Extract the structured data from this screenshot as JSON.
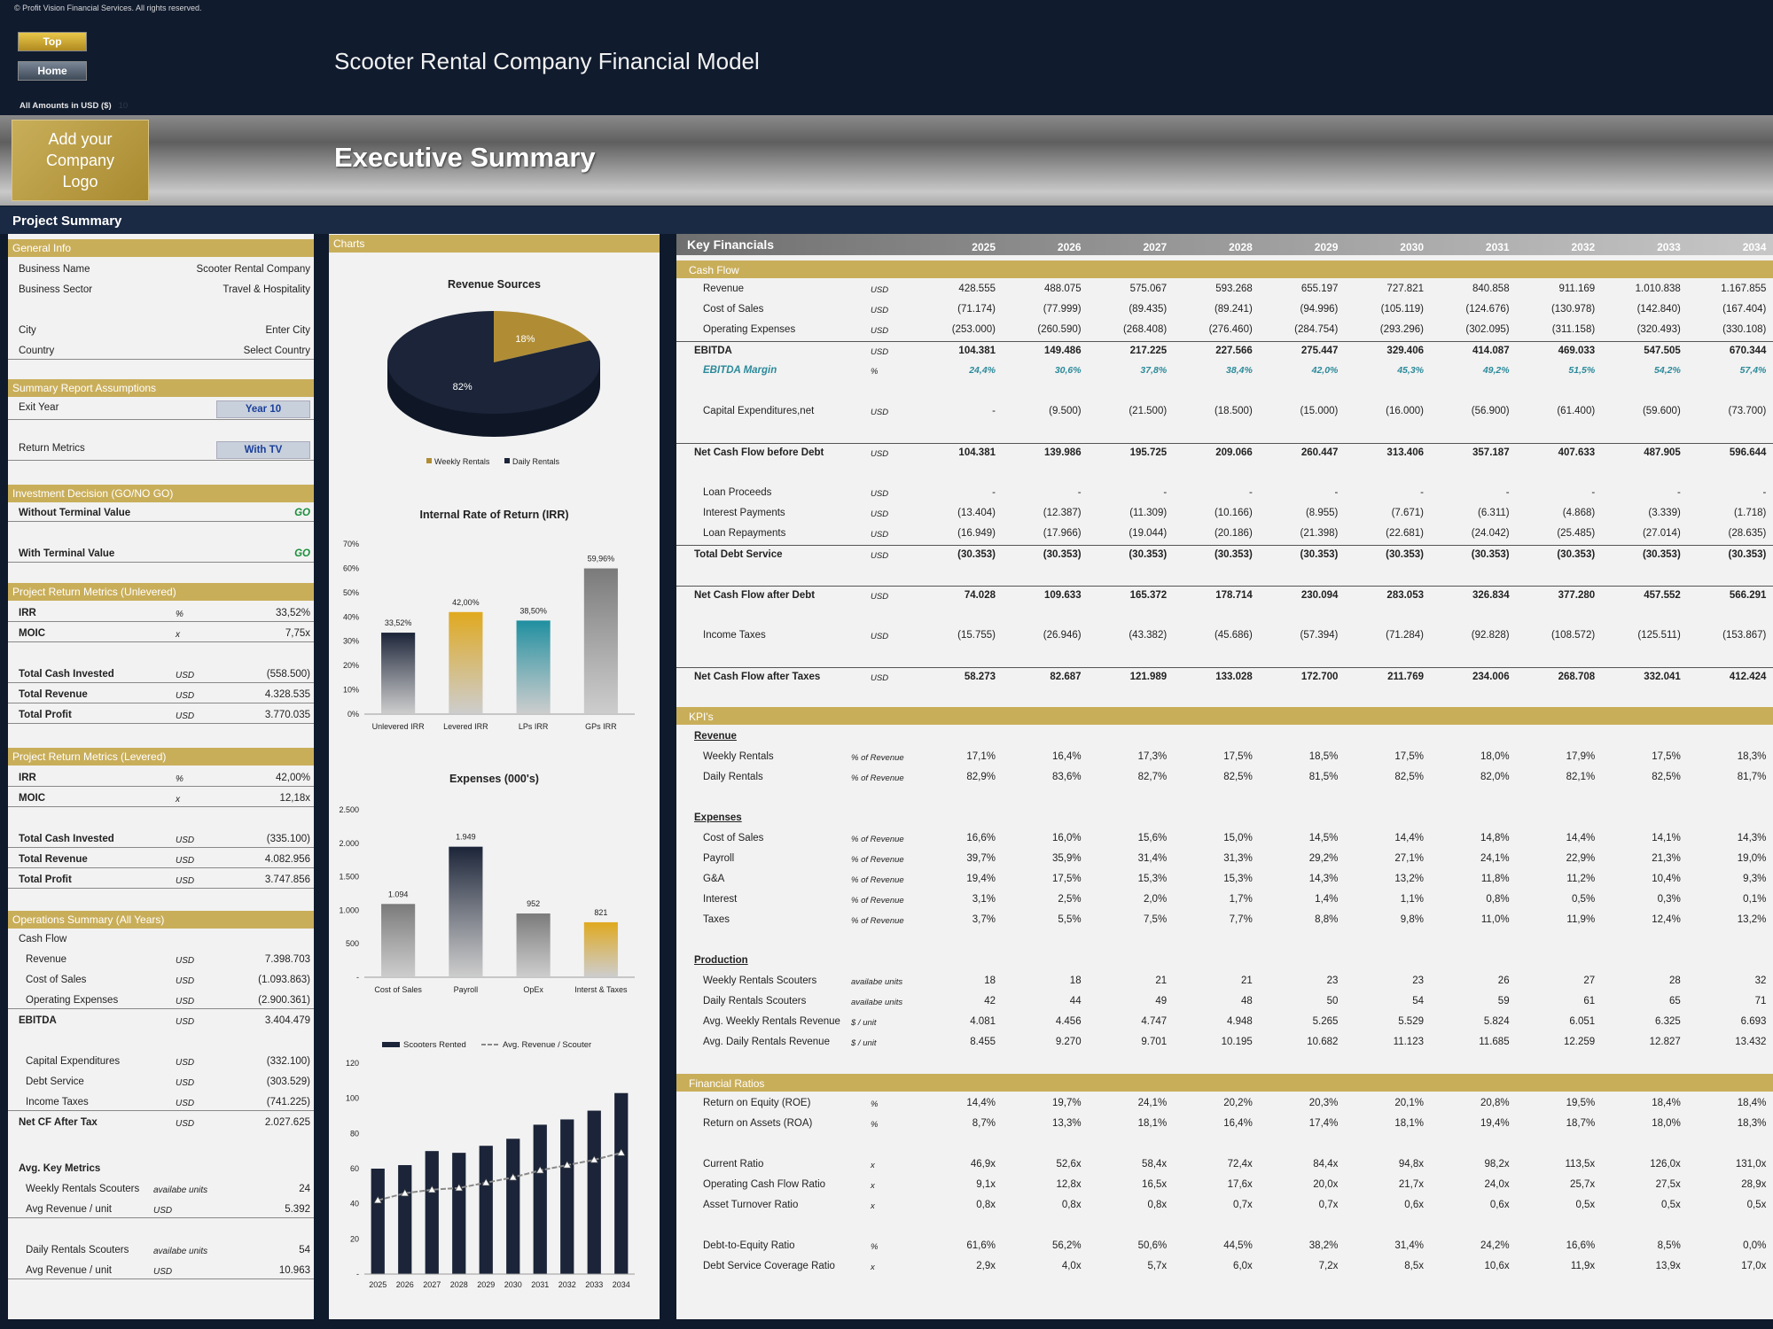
{
  "header": {
    "copyright": "© Profit Vision Financial Services. All rights reserved.",
    "top_label": "Top",
    "home_label": "Home",
    "title": "Scooter Rental Company Financial Model",
    "amounts": "All Amounts in  USD ($)",
    "amounts_small": "10"
  },
  "banner": {
    "logo": "Add your Company Logo",
    "title": "Executive Summary"
  },
  "project_summary": "Project Summary",
  "general": {
    "heading": "General Info",
    "rows": [
      {
        "label": "Business Name",
        "value": "Scooter Rental Company"
      },
      {
        "label": "Business Sector",
        "value": "Travel & Hospitality"
      },
      {
        "label": "City",
        "value": "Enter City"
      },
      {
        "label": "Country",
        "value": "Select Country"
      }
    ]
  },
  "assumptions": {
    "heading": "Summary  Report Assumptions",
    "exit_label": "Exit Year",
    "exit_value": "Year 10",
    "return_label": "Return Metrics",
    "return_value": "With TV"
  },
  "decision": {
    "heading": "Investment Decision (GO/NO GO)",
    "without_label": "Without Terminal Value",
    "without_value": "GO",
    "with_label": "With Terminal Value",
    "with_value": "GO"
  },
  "unlevered": {
    "heading": "Project Return Metrics (Unlevered)",
    "irr_label": "IRR",
    "irr_unit": "%",
    "irr": "33,52%",
    "moic_label": "MOIC",
    "moic_unit": "x",
    "moic": "7,75x",
    "tci_label": "Total Cash Invested",
    "tci_unit": "USD",
    "tci": "(558.500)",
    "rev_label": "Total Revenue",
    "rev_unit": "USD",
    "rev": "4.328.535",
    "profit_label": "Total Profit",
    "profit_unit": "USD",
    "profit": "3.770.035"
  },
  "levered": {
    "heading": "Project Return Metrics (Levered)",
    "irr_label": "IRR",
    "irr_unit": "%",
    "irr": "42,00%",
    "moic_label": "MOIC",
    "moic_unit": "x",
    "moic": "12,18x",
    "tci_label": "Total Cash Invested",
    "tci_unit": "USD",
    "tci": "(335.100)",
    "rev_label": "Total Revenue",
    "rev_unit": "USD",
    "rev": "4.082.956",
    "profit_label": "Total Profit",
    "profit_unit": "USD",
    "profit": "3.747.856"
  },
  "ops": {
    "heading": "Operations Summary (All Years)",
    "cf_label": "Cash Flow",
    "rows": [
      {
        "label": "Revenue",
        "unit": "USD",
        "value": "7.398.703"
      },
      {
        "label": "Cost of Sales",
        "unit": "USD",
        "value": "(1.093.863)"
      },
      {
        "label": "Operating Expenses",
        "unit": "USD",
        "value": "(2.900.361)"
      }
    ],
    "ebitda_label": "EBITDA",
    "ebitda_unit": "USD",
    "ebitda": "3.404.479",
    "rows2": [
      {
        "label": "Capital Expenditures",
        "unit": "USD",
        "value": "(332.100)"
      },
      {
        "label": "Debt Service",
        "unit": "USD",
        "value": "(303.529)"
      },
      {
        "label": "Income Taxes",
        "unit": "USD",
        "value": "(741.225)"
      }
    ],
    "netcf_label": "Net CF After Tax",
    "netcf_unit": "USD",
    "netcf": "2.027.625",
    "akm_label": "Avg. Key Metrics",
    "rows3": [
      {
        "label": "Weekly Rentals Scouters",
        "unit": "availabe units",
        "value": "24"
      },
      {
        "label": "Avg Revenue / unit",
        "unit": "USD",
        "value": "5.392"
      },
      {
        "label": "Daily Rentals Scouters",
        "unit": "availabe units",
        "value": "54"
      },
      {
        "label": "Avg Revenue / unit",
        "unit": "USD",
        "value": "10.963"
      }
    ]
  },
  "charts_heading": "Charts",
  "chart_data": [
    {
      "type": "pie",
      "title": "Revenue Sources",
      "categories": [
        "Weekly Rentals",
        "Daily Rentals"
      ],
      "values": [
        18,
        82
      ],
      "labels": [
        "18%",
        "82%"
      ],
      "colors": [
        "#b08d35",
        "#1b2438"
      ],
      "legend": "bottom"
    },
    {
      "type": "bar",
      "title": "Internal Rate of Return (IRR)",
      "categories": [
        "Unlevered IRR",
        "Levered IRR",
        "LPs IRR",
        "GPs IRR"
      ],
      "values": [
        33.52,
        42.0,
        38.5,
        59.96
      ],
      "labels": [
        "33,52%",
        "42,00%",
        "38,50%",
        "59,96%"
      ],
      "ylim": [
        0,
        70
      ],
      "yticks": [
        "0%",
        "10%",
        "20%",
        "30%",
        "40%",
        "50%",
        "60%",
        "70%"
      ],
      "colors": [
        "#1b2438",
        "#e0a91e",
        "#1f8fa0",
        "#7a7a7a"
      ]
    },
    {
      "type": "bar",
      "title": "Expenses (000's)",
      "categories": [
        "Cost of Sales",
        "Payroll",
        "OpEx",
        "Interst & Taxes"
      ],
      "values": [
        1094,
        1949,
        952,
        821
      ],
      "labels": [
        "1.094",
        "1.949",
        "952",
        "821"
      ],
      "ylim": [
        0,
        2500
      ],
      "yticks": [
        "-",
        "500",
        "1.000",
        "1.500",
        "2.000",
        "2.500"
      ],
      "colors": [
        "#7a7a7a",
        "#1b2438",
        "#7a7a7a",
        "#e0a91e"
      ]
    },
    {
      "type": "bar",
      "title": "",
      "categories": [
        "2025",
        "2026",
        "2027",
        "2028",
        "2029",
        "2030",
        "2031",
        "2032",
        "2033",
        "2034"
      ],
      "series": [
        {
          "name": "Scooters Rented",
          "values": [
            60,
            62,
            70,
            69,
            73,
            77,
            85,
            88,
            93,
            103
          ]
        },
        {
          "name": "Avg. Revenue / Scouter",
          "values": [
            42,
            46,
            48,
            49,
            52,
            55,
            59,
            62,
            65,
            69
          ]
        }
      ],
      "ylim": [
        0,
        120
      ],
      "yticks": [
        "-",
        "20",
        "40",
        "60",
        "80",
        "100",
        "120"
      ],
      "legend": "top"
    }
  ],
  "kf": {
    "title": "Key Financials",
    "years": [
      "2025",
      "2026",
      "2027",
      "2028",
      "2029",
      "2030",
      "2031",
      "2032",
      "2033",
      "2034"
    ],
    "cash_flow": "Cash Flow",
    "cf_rows": [
      {
        "label": "Revenue",
        "unit": "USD",
        "style": "",
        "vals": [
          "428.555",
          "488.075",
          "575.067",
          "593.268",
          "655.197",
          "727.821",
          "840.858",
          "911.169",
          "1.010.838",
          "1.167.855"
        ]
      },
      {
        "label": "Cost of Sales",
        "unit": "USD",
        "style": "",
        "vals": [
          "(71.174)",
          "(77.999)",
          "(89.435)",
          "(89.241)",
          "(94.996)",
          "(105.119)",
          "(124.676)",
          "(130.978)",
          "(142.840)",
          "(167.404)"
        ]
      },
      {
        "label": "Operating Expenses",
        "unit": "USD",
        "style": "",
        "vals": [
          "(253.000)",
          "(260.590)",
          "(268.408)",
          "(276.460)",
          "(284.754)",
          "(293.296)",
          "(302.095)",
          "(311.158)",
          "(320.493)",
          "(330.108)"
        ]
      },
      {
        "label": "EBITDA",
        "unit": "USD",
        "style": "bold",
        "vals": [
          "104.381",
          "149.486",
          "217.225",
          "227.566",
          "275.447",
          "329.406",
          "414.087",
          "469.033",
          "547.505",
          "670.344"
        ]
      },
      {
        "label": "EBITDA Margin",
        "unit": "%",
        "style": "margin",
        "vals": [
          "24,4%",
          "30,6%",
          "37,8%",
          "38,4%",
          "42,0%",
          "45,3%",
          "49,2%",
          "51,5%",
          "54,2%",
          "57,4%"
        ]
      },
      {
        "label": "Capital Expenditures,net",
        "unit": "USD",
        "style": "",
        "vals": [
          "-",
          "(9.500)",
          "(21.500)",
          "(18.500)",
          "(15.000)",
          "(16.000)",
          "(56.900)",
          "(61.400)",
          "(59.600)",
          "(73.700)"
        ]
      },
      {
        "label": "Net Cash Flow before Debt",
        "unit": "USD",
        "style": "bold",
        "vals": [
          "104.381",
          "139.986",
          "195.725",
          "209.066",
          "260.447",
          "313.406",
          "357.187",
          "407.633",
          "487.905",
          "596.644"
        ]
      },
      {
        "label": "Loan Proceeds",
        "unit": "USD",
        "style": "",
        "vals": [
          "-",
          "-",
          "-",
          "-",
          "-",
          "-",
          "-",
          "-",
          "-",
          "-"
        ]
      },
      {
        "label": "Interest Payments",
        "unit": "USD",
        "style": "",
        "vals": [
          "(13.404)",
          "(12.387)",
          "(11.309)",
          "(10.166)",
          "(8.955)",
          "(7.671)",
          "(6.311)",
          "(4.868)",
          "(3.339)",
          "(1.718)"
        ]
      },
      {
        "label": "Loan Repayments",
        "unit": "USD",
        "style": "",
        "vals": [
          "(16.949)",
          "(17.966)",
          "(19.044)",
          "(20.186)",
          "(21.398)",
          "(22.681)",
          "(24.042)",
          "(25.485)",
          "(27.014)",
          "(28.635)"
        ]
      },
      {
        "label": "Total Debt Service",
        "unit": "USD",
        "style": "bold",
        "vals": [
          "(30.353)",
          "(30.353)",
          "(30.353)",
          "(30.353)",
          "(30.353)",
          "(30.353)",
          "(30.353)",
          "(30.353)",
          "(30.353)",
          "(30.353)"
        ]
      },
      {
        "label": "Net Cash Flow after Debt",
        "unit": "USD",
        "style": "bold",
        "vals": [
          "74.028",
          "109.633",
          "165.372",
          "178.714",
          "230.094",
          "283.053",
          "326.834",
          "377.280",
          "457.552",
          "566.291"
        ]
      },
      {
        "label": "Income Taxes",
        "unit": "USD",
        "style": "",
        "vals": [
          "(15.755)",
          "(26.946)",
          "(43.382)",
          "(45.686)",
          "(57.394)",
          "(71.284)",
          "(92.828)",
          "(108.572)",
          "(125.511)",
          "(153.867)"
        ]
      },
      {
        "label": "Net Cash Flow after Taxes",
        "unit": "USD",
        "style": "bold",
        "vals": [
          "58.273",
          "82.687",
          "121.989",
          "133.028",
          "172.700",
          "211.769",
          "234.006",
          "268.708",
          "332.041",
          "412.424"
        ]
      }
    ],
    "kpis": "KPI's",
    "revenue_h": "Revenue",
    "rev_rows": [
      {
        "label": "Weekly Rentals",
        "unit": "% of Revenue",
        "vals": [
          "17,1%",
          "16,4%",
          "17,3%",
          "17,5%",
          "18,5%",
          "17,5%",
          "18,0%",
          "17,9%",
          "17,5%",
          "18,3%"
        ]
      },
      {
        "label": "Daily Rentals",
        "unit": "% of Revenue",
        "vals": [
          "82,9%",
          "83,6%",
          "82,7%",
          "82,5%",
          "81,5%",
          "82,5%",
          "82,0%",
          "82,1%",
          "82,5%",
          "81,7%"
        ]
      }
    ],
    "expenses_h": "Expenses",
    "exp_rows": [
      {
        "label": "Cost of Sales",
        "unit": "% of Revenue",
        "vals": [
          "16,6%",
          "16,0%",
          "15,6%",
          "15,0%",
          "14,5%",
          "14,4%",
          "14,8%",
          "14,4%",
          "14,1%",
          "14,3%"
        ]
      },
      {
        "label": "Payroll",
        "unit": "% of Revenue",
        "vals": [
          "39,7%",
          "35,9%",
          "31,4%",
          "31,3%",
          "29,2%",
          "27,1%",
          "24,1%",
          "22,9%",
          "21,3%",
          "19,0%"
        ]
      },
      {
        "label": "G&A",
        "unit": "% of Revenue",
        "vals": [
          "19,4%",
          "17,5%",
          "15,3%",
          "15,3%",
          "14,3%",
          "13,2%",
          "11,8%",
          "11,2%",
          "10,4%",
          "9,3%"
        ]
      },
      {
        "label": "Interest",
        "unit": "% of Revenue",
        "vals": [
          "3,1%",
          "2,5%",
          "2,0%",
          "1,7%",
          "1,4%",
          "1,1%",
          "0,8%",
          "0,5%",
          "0,3%",
          "0,1%"
        ]
      },
      {
        "label": "Taxes",
        "unit": "% of Revenue",
        "vals": [
          "3,7%",
          "5,5%",
          "7,5%",
          "7,7%",
          "8,8%",
          "9,8%",
          "11,0%",
          "11,9%",
          "12,4%",
          "13,2%"
        ]
      }
    ],
    "production_h": "Production",
    "prod_rows": [
      {
        "label": "Weekly Rentals Scouters",
        "unit": "availabe units",
        "vals": [
          "18",
          "18",
          "21",
          "21",
          "23",
          "23",
          "26",
          "27",
          "28",
          "32"
        ]
      },
      {
        "label": "Daily Rentals Scouters",
        "unit": "availabe units",
        "vals": [
          "42",
          "44",
          "49",
          "48",
          "50",
          "54",
          "59",
          "61",
          "65",
          "71"
        ]
      },
      {
        "label": "Avg. Weekly Rentals Revenue",
        "unit": "$ / unit",
        "vals": [
          "4.081",
          "4.456",
          "4.747",
          "4.948",
          "5.265",
          "5.529",
          "5.824",
          "6.051",
          "6.325",
          "6.693"
        ]
      },
      {
        "label": "Avg. Daily Rentals Revenue",
        "unit": "$ / unit",
        "vals": [
          "8.455",
          "9.270",
          "9.701",
          "10.195",
          "10.682",
          "11.123",
          "11.685",
          "12.259",
          "12.827",
          "13.432"
        ]
      }
    ],
    "ratios_h": "Financial Ratios",
    "ratio_rows": [
      {
        "label": "Return on Equity (ROE)",
        "unit": "%",
        "vals": [
          "14,4%",
          "19,7%",
          "24,1%",
          "20,2%",
          "20,3%",
          "20,1%",
          "20,8%",
          "19,5%",
          "18,4%",
          "18,4%"
        ]
      },
      {
        "label": "Return on Assets (ROA)",
        "unit": "%",
        "vals": [
          "8,7%",
          "13,3%",
          "18,1%",
          "16,4%",
          "17,4%",
          "18,1%",
          "19,4%",
          "18,7%",
          "18,0%",
          "18,3%"
        ]
      },
      {
        "label": "Current Ratio",
        "unit": "x",
        "vals": [
          "46,9x",
          "52,6x",
          "58,4x",
          "72,4x",
          "84,4x",
          "94,8x",
          "98,2x",
          "113,5x",
          "126,0x",
          "131,0x"
        ]
      },
      {
        "label": "Operating Cash Flow Ratio",
        "unit": "x",
        "vals": [
          "9,1x",
          "12,8x",
          "16,5x",
          "17,6x",
          "20,0x",
          "21,7x",
          "24,0x",
          "25,7x",
          "27,5x",
          "28,9x"
        ]
      },
      {
        "label": "Asset Turnover Ratio",
        "unit": "x",
        "vals": [
          "0,8x",
          "0,8x",
          "0,8x",
          "0,7x",
          "0,7x",
          "0,6x",
          "0,6x",
          "0,5x",
          "0,5x",
          "0,5x"
        ]
      },
      {
        "label": "Debt-to-Equity Ratio",
        "unit": "%",
        "vals": [
          "61,6%",
          "56,2%",
          "50,6%",
          "44,5%",
          "38,2%",
          "31,4%",
          "24,2%",
          "16,6%",
          "8,5%",
          "0,0%"
        ]
      },
      {
        "label": "Debt Service Coverage Ratio",
        "unit": "x",
        "vals": [
          "2,9x",
          "4,0x",
          "5,7x",
          "6,0x",
          "7,2x",
          "8,5x",
          "10,6x",
          "11,9x",
          "13,9x",
          "17,0x"
        ]
      }
    ]
  }
}
